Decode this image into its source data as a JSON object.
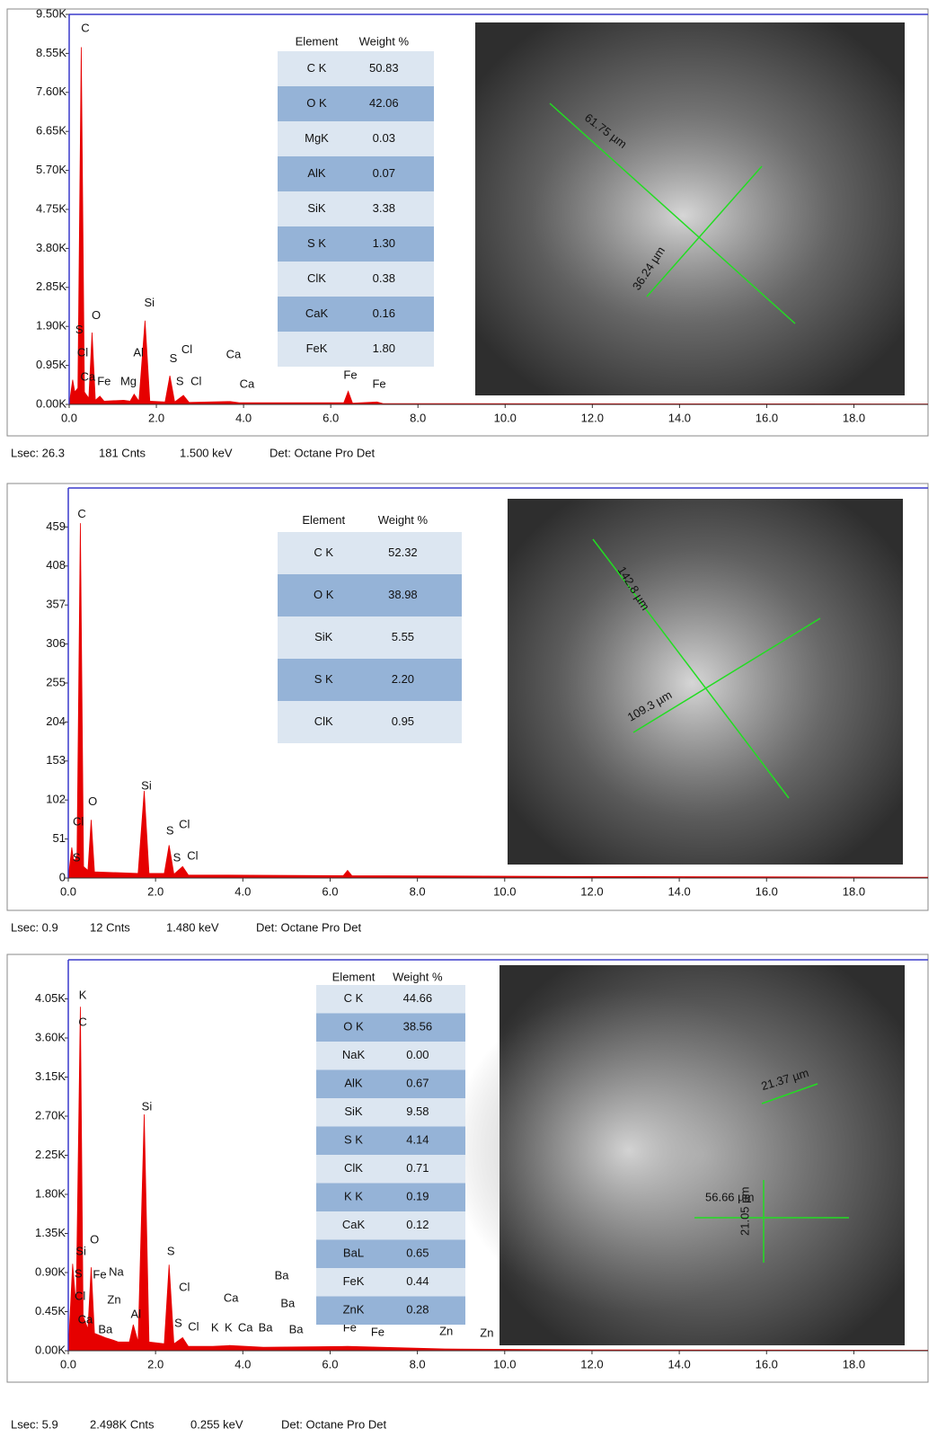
{
  "chart_data": [
    {
      "type": "area",
      "color": "#e60000",
      "x": [
        0,
        0.08,
        0.13,
        0.2,
        0.277,
        0.35,
        0.45,
        0.525,
        0.6,
        0.705,
        0.8,
        1.25,
        1.4,
        1.49,
        1.6,
        1.74,
        1.85,
        2.2,
        2.31,
        2.42,
        2.62,
        2.75,
        3.69,
        3.9,
        6.3,
        6.4,
        6.5,
        7.06,
        7.2,
        12,
        19.7
      ],
      "values": [
        0,
        600,
        300,
        400,
        8700,
        300,
        150,
        1750,
        100,
        200,
        80,
        100,
        80,
        250,
        80,
        2040,
        80,
        60,
        700,
        60,
        220,
        50,
        70,
        40,
        40,
        320,
        30,
        60,
        20,
        15,
        10
      ],
      "xlim": [
        0,
        19.7
      ],
      "xticks": [
        {
          "value": 0,
          "label": "0.0"
        },
        {
          "value": 2,
          "label": "2.0"
        },
        {
          "value": 4,
          "label": "4.0"
        },
        {
          "value": 6,
          "label": "6.0"
        },
        {
          "value": 8,
          "label": "8.0"
        },
        {
          "value": 10,
          "label": "10.0"
        },
        {
          "value": 12,
          "label": "12.0"
        },
        {
          "value": 14,
          "label": "14.0"
        },
        {
          "value": 16,
          "label": "16.0"
        },
        {
          "value": 18,
          "label": "18.0"
        }
      ],
      "ylim": [
        0,
        9500
      ],
      "yticks": [
        {
          "value": 0,
          "label": "0.00K"
        },
        {
          "value": 950,
          "label": "0.95K"
        },
        {
          "value": 1900,
          "label": "1.90K"
        },
        {
          "value": 2850,
          "label": "2.85K"
        },
        {
          "value": 3800,
          "label": "3.80K"
        },
        {
          "value": 4750,
          "label": "4.75K"
        },
        {
          "value": 5700,
          "label": "5.70K"
        },
        {
          "value": 6650,
          "label": "6.65K"
        },
        {
          "value": 7600,
          "label": "7.60K"
        },
        {
          "value": 8550,
          "label": "8.55K"
        },
        {
          "value": 9500,
          "label": "9.50K"
        }
      ],
      "annotations": [
        {
          "text": "C",
          "x": 0.37,
          "y": 9150
        },
        {
          "text": "O",
          "x": 0.62,
          "y": 2150
        },
        {
          "text": "Si",
          "x": 1.84,
          "y": 2460
        },
        {
          "text": "Al",
          "x": 1.59,
          "y": 1250
        },
        {
          "text": "S",
          "x": 0.23,
          "y": 1800
        },
        {
          "text": "S",
          "x": 2.39,
          "y": 1100
        },
        {
          "text": "S",
          "x": 2.54,
          "y": 550
        },
        {
          "text": "Cl",
          "x": 0.31,
          "y": 1250
        },
        {
          "text": "Cl",
          "x": 2.7,
          "y": 1320
        },
        {
          "text": "Cl",
          "x": 2.91,
          "y": 550
        },
        {
          "text": "Ca",
          "x": 0.43,
          "y": 660
        },
        {
          "text": "Ca",
          "x": 3.77,
          "y": 1200
        },
        {
          "text": "Ca",
          "x": 4.08,
          "y": 480
        },
        {
          "text": "Fe",
          "x": 0.8,
          "y": 550
        },
        {
          "text": "Fe",
          "x": 6.45,
          "y": 700
        },
        {
          "text": "Fe",
          "x": 7.11,
          "y": 480
        },
        {
          "text": "Mg",
          "x": 1.36,
          "y": 550
        }
      ],
      "table": {
        "columns": [
          "Element",
          "Weight %"
        ],
        "rows": [
          [
            "C K",
            "50.83"
          ],
          [
            "O K",
            "42.06"
          ],
          [
            "MgK",
            "0.03"
          ],
          [
            "AlK",
            "0.07"
          ],
          [
            "SiK",
            "3.38"
          ],
          [
            "S K",
            "1.30"
          ],
          [
            "ClK",
            "0.38"
          ],
          [
            "CaK",
            "0.16"
          ],
          [
            "FeK",
            "1.80"
          ]
        ]
      },
      "image_labels": [
        "61.75 µm",
        "36.24 µm"
      ],
      "footer": [
        "Lsec: 26.3",
        "181 Cnts",
        "1.500 keV",
        "Det: Octane Pro Det"
      ]
    },
    {
      "type": "area",
      "color": "#e60000",
      "x": [
        0,
        0.08,
        0.13,
        0.2,
        0.277,
        0.35,
        0.45,
        0.525,
        0.6,
        1.6,
        1.74,
        1.85,
        2.2,
        2.31,
        2.42,
        2.62,
        2.75,
        6.3,
        6.4,
        6.5,
        12,
        19.7
      ],
      "values": [
        0,
        40,
        20,
        30,
        464,
        15,
        10,
        76,
        8,
        6,
        114,
        6,
        6,
        43,
        5,
        15,
        4,
        3,
        10,
        3,
        2,
        1
      ],
      "xlim": [
        0,
        19.7
      ],
      "xticks": [
        {
          "value": 0,
          "label": "0.0"
        },
        {
          "value": 2,
          "label": "2.0"
        },
        {
          "value": 4,
          "label": "4.0"
        },
        {
          "value": 6,
          "label": "6.0"
        },
        {
          "value": 8,
          "label": "8.0"
        },
        {
          "value": 10,
          "label": "10.0"
        },
        {
          "value": 12,
          "label": "12.0"
        },
        {
          "value": 14,
          "label": "14.0"
        },
        {
          "value": 16,
          "label": "16.0"
        },
        {
          "value": 18,
          "label": "18.0"
        }
      ],
      "ylim": [
        0,
        510
      ],
      "yticks": [
        0,
        51,
        102,
        153,
        204,
        255,
        306,
        357,
        408,
        459
      ],
      "annotations": [
        {
          "text": "C",
          "x": 0.31,
          "y": 475
        },
        {
          "text": "O",
          "x": 0.56,
          "y": 99
        },
        {
          "text": "Si",
          "x": 1.79,
          "y": 120
        },
        {
          "text": "Cl",
          "x": 0.23,
          "y": 73
        },
        {
          "text": "S",
          "x": 0.19,
          "y": 26
        },
        {
          "text": "S",
          "x": 2.33,
          "y": 61
        },
        {
          "text": "Cl",
          "x": 2.66,
          "y": 69
        },
        {
          "text": "S",
          "x": 2.49,
          "y": 26
        },
        {
          "text": "Cl",
          "x": 2.85,
          "y": 28
        }
      ],
      "table": {
        "columns": [
          "Element",
          "Weight %"
        ],
        "rows": [
          [
            "C K",
            "52.32"
          ],
          [
            "O K",
            "38.98"
          ],
          [
            "SiK",
            "5.55"
          ],
          [
            "S K",
            "2.20"
          ],
          [
            "ClK",
            "0.95"
          ]
        ]
      },
      "image_labels": [
        "142.8 µm",
        "109.3 µm"
      ],
      "footer": [
        "Lsec: 0.9",
        "12 Cnts",
        "1.480 keV",
        "Det: Octane Pro Det"
      ]
    },
    {
      "type": "area",
      "color": "#e60000",
      "x": [
        0,
        0.1,
        0.18,
        0.277,
        0.34,
        0.45,
        0.525,
        0.6,
        0.85,
        1.04,
        1.15,
        1.4,
        1.49,
        1.6,
        1.74,
        1.85,
        2.2,
        2.31,
        2.42,
        2.62,
        2.75,
        3.31,
        3.69,
        4.47,
        6.4,
        8.63,
        12,
        19.7
      ],
      "values": [
        0,
        1000,
        500,
        3960,
        400,
        250,
        960,
        200,
        150,
        120,
        100,
        100,
        300,
        100,
        2720,
        100,
        80,
        990,
        80,
        150,
        50,
        50,
        60,
        40,
        50,
        20,
        10,
        5
      ],
      "xlim": [
        0,
        19.7
      ],
      "xticks": [
        {
          "value": 0,
          "label": "0.0"
        },
        {
          "value": 2,
          "label": "2.0"
        },
        {
          "value": 4,
          "label": "4.0"
        },
        {
          "value": 6,
          "label": "6.0"
        },
        {
          "value": 8,
          "label": "8.0"
        },
        {
          "value": 10,
          "label": "10.0"
        },
        {
          "value": 12,
          "label": "12.0"
        },
        {
          "value": 14,
          "label": "14.0"
        },
        {
          "value": 16,
          "label": "16.0"
        },
        {
          "value": 18,
          "label": "18.0"
        }
      ],
      "ylim": [
        0,
        4500
      ],
      "yticks": [
        {
          "value": 0,
          "label": "0.00K"
        },
        {
          "value": 450,
          "label": "0.45K"
        },
        {
          "value": 900,
          "label": "0.90K"
        },
        {
          "value": 1350,
          "label": "1.35K"
        },
        {
          "value": 1800,
          "label": "1.80K"
        },
        {
          "value": 2250,
          "label": "2.25K"
        },
        {
          "value": 2700,
          "label": "2.70K"
        },
        {
          "value": 3150,
          "label": "3.15K"
        },
        {
          "value": 3600,
          "label": "3.60K"
        },
        {
          "value": 4050,
          "label": "4.05K"
        }
      ],
      "annotations": [
        {
          "text": "K",
          "x": 0.33,
          "y": 4086
        },
        {
          "text": "C",
          "x": 0.33,
          "y": 3776
        },
        {
          "text": "Si",
          "x": 1.8,
          "y": 2803
        },
        {
          "text": "O",
          "x": 0.6,
          "y": 1272
        },
        {
          "text": "Si",
          "x": 0.29,
          "y": 1138
        },
        {
          "text": "S",
          "x": 0.23,
          "y": 879
        },
        {
          "text": "Fe",
          "x": 0.72,
          "y": 869
        },
        {
          "text": "Na",
          "x": 1.1,
          "y": 900
        },
        {
          "text": "Cl",
          "x": 0.27,
          "y": 621
        },
        {
          "text": "Zn",
          "x": 1.05,
          "y": 579
        },
        {
          "text": "Ca",
          "x": 0.39,
          "y": 352
        },
        {
          "text": "Ba",
          "x": 0.85,
          "y": 238
        },
        {
          "text": "Al",
          "x": 1.55,
          "y": 414
        },
        {
          "text": "S",
          "x": 2.35,
          "y": 1138
        },
        {
          "text": "Cl",
          "x": 2.66,
          "y": 724
        },
        {
          "text": "S",
          "x": 2.52,
          "y": 310
        },
        {
          "text": "Cl",
          "x": 2.87,
          "y": 269
        },
        {
          "text": "K",
          "x": 3.36,
          "y": 259
        },
        {
          "text": "K",
          "x": 3.67,
          "y": 259
        },
        {
          "text": "Ca",
          "x": 4.06,
          "y": 259
        },
        {
          "text": "Ba",
          "x": 4.52,
          "y": 259
        },
        {
          "text": "Ba",
          "x": 5.22,
          "y": 238
        },
        {
          "text": "Ba",
          "x": 4.89,
          "y": 859
        },
        {
          "text": "Ba",
          "x": 5.03,
          "y": 538
        },
        {
          "text": "Ca",
          "x": 3.73,
          "y": 600
        },
        {
          "text": "Fe",
          "x": 6.45,
          "y": 259
        },
        {
          "text": "Fe",
          "x": 7.09,
          "y": 207
        },
        {
          "text": "Zn",
          "x": 8.66,
          "y": 217
        },
        {
          "text": "Zn",
          "x": 9.59,
          "y": 197
        }
      ],
      "table": {
        "columns": [
          "Element",
          "Weight %"
        ],
        "rows": [
          [
            "C K",
            "44.66"
          ],
          [
            "O K",
            "38.56"
          ],
          [
            "NaK",
            "0.00"
          ],
          [
            "AlK",
            "0.67"
          ],
          [
            "SiK",
            "9.58"
          ],
          [
            "S K",
            "4.14"
          ],
          [
            "ClK",
            "0.71"
          ],
          [
            "K K",
            "0.19"
          ],
          [
            "CaK",
            "0.12"
          ],
          [
            "BaL",
            "0.65"
          ],
          [
            "FeK",
            "0.44"
          ],
          [
            "ZnK",
            "0.28"
          ]
        ]
      },
      "image_labels": [
        "21.37 µm",
        "56.66 µm",
        "21.05 µm"
      ],
      "footer": [
        "Lsec: 5.9",
        "2.498K Cnts",
        "0.255 keV",
        "Det: Octane Pro Det"
      ]
    }
  ]
}
